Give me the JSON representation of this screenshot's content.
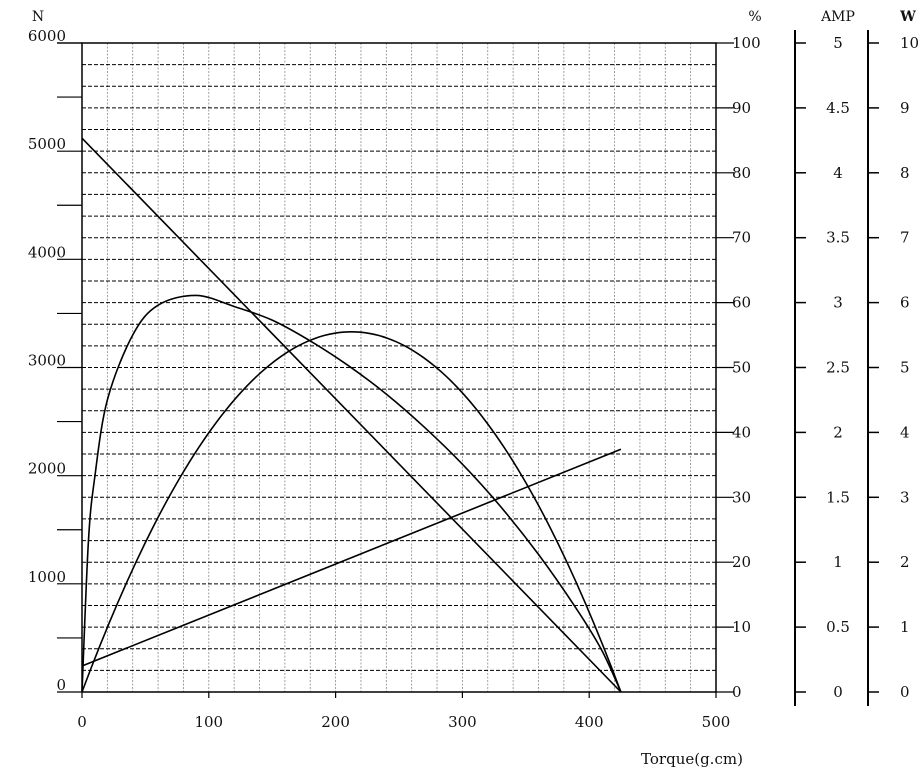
{
  "chart_data": {
    "type": "line",
    "xlabel": "Torque(g.cm)",
    "xlim": [
      0,
      500
    ],
    "x_ticks": [
      "0",
      "100",
      "200",
      "300",
      "400",
      "500"
    ],
    "axes": {
      "speed": {
        "unit": "N",
        "lim": [
          0,
          6000
        ],
        "ticks": [
          "0",
          "1000",
          "2000",
          "3000",
          "4000",
          "5000",
          "6000"
        ]
      },
      "efficiency": {
        "unit": "%",
        "lim": [
          0,
          100
        ],
        "ticks": [
          "0",
          "10",
          "20",
          "30",
          "40",
          "50",
          "60",
          "70",
          "80",
          "90",
          "100"
        ]
      },
      "current": {
        "unit": "AMP",
        "lim": [
          0,
          5
        ],
        "ticks": [
          "0",
          "0.5",
          "1",
          "1.5",
          "2",
          "2.5",
          "3",
          "3.5",
          "4",
          "4.5",
          "5"
        ]
      },
      "power": {
        "unit": "W",
        "lim": [
          0,
          10
        ],
        "ticks": [
          "0",
          "1",
          "2",
          "3",
          "4",
          "5",
          "6",
          "7",
          "8",
          "9",
          "10"
        ]
      }
    },
    "grid": true,
    "series": [
      {
        "axis": "speed",
        "style": "line",
        "x": [
          0,
          425
        ],
        "y": [
          5120,
          0
        ]
      },
      {
        "axis": "efficiency",
        "style": "efficiency",
        "x": [
          0,
          5,
          10,
          20,
          40,
          60,
          90,
          120,
          150,
          180,
          210,
          240,
          270,
          300,
          330,
          360,
          390,
          410,
          425
        ],
        "y": [
          0,
          23,
          33,
          45,
          55,
          59.6,
          61.1,
          59.4,
          57.3,
          54.1,
          50.3,
          45.9,
          40.8,
          35.1,
          28.6,
          21.2,
          12.8,
          6.4,
          0
        ]
      },
      {
        "axis": "current",
        "style": "line",
        "x": [
          0,
          425
        ],
        "y": [
          0.2,
          1.87
        ]
      },
      {
        "axis": "power",
        "style": "parabola",
        "x_peak": 212.5,
        "y_peak": 5.55,
        "x_end": 425
      }
    ]
  }
}
